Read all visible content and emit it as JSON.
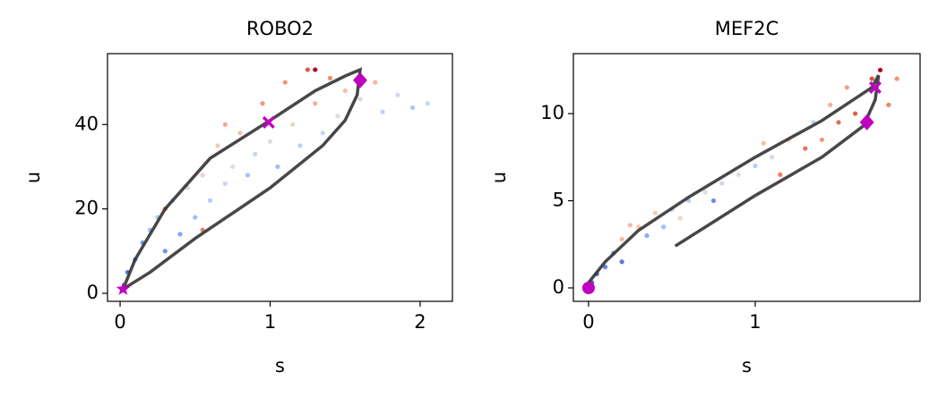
{
  "chart_data": [
    {
      "type": "scatter",
      "title": "ROBO2",
      "x_label": "s",
      "y_label": "u",
      "xlim": [
        -0.084,
        2.215
      ],
      "ylim": [
        -1.9,
        56.8
      ],
      "xticks": [
        0,
        1,
        2
      ],
      "yticks": [
        0,
        20,
        40
      ],
      "series": [
        {
          "type": "points",
          "x": [
            0.05,
            0.1,
            0.15,
            0.2,
            0.25,
            0.3,
            0.35,
            0.4,
            0.45,
            0.5,
            0.55,
            0.6,
            0.65,
            0.7,
            0.75,
            0.8,
            0.85,
            0.9,
            0.95,
            1.0,
            1.05,
            1.1,
            1.15,
            1.2,
            1.25,
            1.3,
            1.35,
            1.4,
            1.45,
            1.5,
            1.6,
            1.7,
            1.75,
            1.85,
            1.95,
            2.05,
            0.55,
            0.3,
            1.3,
            0.7
          ],
          "values": [
            5,
            8,
            12,
            15,
            18,
            10,
            22,
            14,
            25,
            18,
            28,
            22,
            35,
            26,
            30,
            38,
            28,
            33,
            45,
            36,
            30,
            50,
            40,
            35,
            53,
            45,
            38,
            51,
            42,
            48,
            46,
            50,
            43,
            47,
            44,
            45,
            15,
            20,
            53,
            40
          ],
          "colors": [
            "#5977e3",
            "#6788ee",
            "#7597f6",
            "#9abbff",
            "#aec9fc",
            "#6f92f3",
            "#c0d4f5",
            "#84a7fc",
            "#d6dce4",
            "#9ebeff",
            "#e8d6cc",
            "#b2ccfb",
            "#f2cbb7",
            "#c5d6f2",
            "#dcdddd",
            "#f5c1a9",
            "#a5c3fe",
            "#cad8ef",
            "#f4987a",
            "#e0dbd8",
            "#9dbdff",
            "#f39475",
            "#ead4c8",
            "#b9d0f9",
            "#dc5d4a",
            "#f7ad90",
            "#c7d7f0",
            "#f08b6e",
            "#d9dce1",
            "#f6bfa6",
            "#e3d9d3",
            "#f7b599",
            "#bcd2f7",
            "#cfdaea",
            "#aac7fd",
            "#c3d5f4",
            "#eb7d62",
            "#e9785d",
            "#b40426",
            "#f7a889"
          ]
        },
        {
          "type": "line",
          "color": "#333333",
          "x": [
            0.02,
            0.1,
            0.3,
            0.6,
            1.0,
            1.3,
            1.5,
            1.6,
            1.58,
            1.5,
            1.35,
            1.0,
            0.5,
            0.2,
            0.02
          ],
          "values": [
            1,
            8,
            20,
            32,
            41,
            48,
            51.5,
            53,
            47,
            41,
            35,
            25,
            13,
            5,
            1
          ]
        },
        {
          "type": "marker",
          "marker": "star",
          "color": "#c000c0",
          "x": [
            0.02
          ],
          "values": [
            1
          ]
        },
        {
          "type": "marker",
          "marker": "x",
          "color": "#c000c0",
          "x": [
            0.99
          ],
          "values": [
            40.5
          ]
        },
        {
          "type": "marker",
          "marker": "diamond",
          "color": "#c000c0",
          "x": [
            1.6
          ],
          "values": [
            50.5
          ]
        }
      ]
    },
    {
      "type": "scatter",
      "title": "MEF2C",
      "x_label": "s",
      "y_label": "u",
      "xlim": [
        -0.091,
        1.989
      ],
      "ylim": [
        -0.77,
        13.44
      ],
      "xticks": [
        0,
        1
      ],
      "yticks": [
        0,
        5,
        10
      ],
      "series": [
        {
          "type": "points",
          "x": [
            0.02,
            0.05,
            0.1,
            0.15,
            0.2,
            0.2,
            0.3,
            0.35,
            0.4,
            0.45,
            0.5,
            0.6,
            0.7,
            0.75,
            0.8,
            0.9,
            1.0,
            1.05,
            1.1,
            1.15,
            1.2,
            1.3,
            1.35,
            1.4,
            1.45,
            1.5,
            1.55,
            1.6,
            1.7,
            1.75,
            1.85,
            1.8,
            0.25,
            0.55
          ],
          "values": [
            0.3,
            0.8,
            1.2,
            2,
            2.8,
            1.5,
            3.5,
            3,
            4.3,
            3.5,
            4.5,
            5,
            5.5,
            5,
            6,
            6.5,
            7,
            8.3,
            7.5,
            6.5,
            8.5,
            8,
            9.5,
            8.5,
            10.5,
            9.5,
            11.5,
            10,
            12,
            12.5,
            12,
            10.5,
            3.6,
            4
          ],
          "colors": [
            "#4961d2",
            "#5a78e4",
            "#6384eb",
            "#7396f5",
            "#f7b89c",
            "#5b7ae5",
            "#f4c5ad",
            "#8caffe",
            "#f2cbb7",
            "#a1c0ff",
            "#c6d6f1",
            "#b5cdfa",
            "#dddcdc",
            "#6b8df0",
            "#cad8ef",
            "#e1dad6",
            "#b3cdfb",
            "#f6bda2",
            "#d4dbe6",
            "#ec7f63",
            "#f3c7b1",
            "#e67259",
            "#bad0f8",
            "#f39778",
            "#f7af91",
            "#e36c55",
            "#f5a081",
            "#dd5f4b",
            "#d75445",
            "#b40426",
            "#f29274",
            "#ee8468",
            "#f7ba9f",
            "#e9d5cb"
          ]
        },
        {
          "type": "line",
          "color": "#333333",
          "x": [
            0,
            0.1,
            0.3,
            0.6,
            1.0,
            1.4,
            1.7,
            1.74,
            1.72,
            1.65,
            1.4,
            1.0,
            0.52
          ],
          "values": [
            0.3,
            1.5,
            3.3,
            5.2,
            7.5,
            9.6,
            11.5,
            12.2,
            10.8,
            9.3,
            7.5,
            5.3,
            2.4
          ]
        },
        {
          "type": "marker",
          "marker": "circle",
          "color": "#c000c0",
          "x": [
            0
          ],
          "values": [
            0
          ]
        },
        {
          "type": "marker",
          "marker": "diamond",
          "color": "#c000c0",
          "x": [
            1.67
          ],
          "values": [
            9.5
          ]
        },
        {
          "type": "marker",
          "marker": "x",
          "color": "#c000c0",
          "x": [
            1.72
          ],
          "values": [
            11.5
          ]
        }
      ]
    }
  ]
}
